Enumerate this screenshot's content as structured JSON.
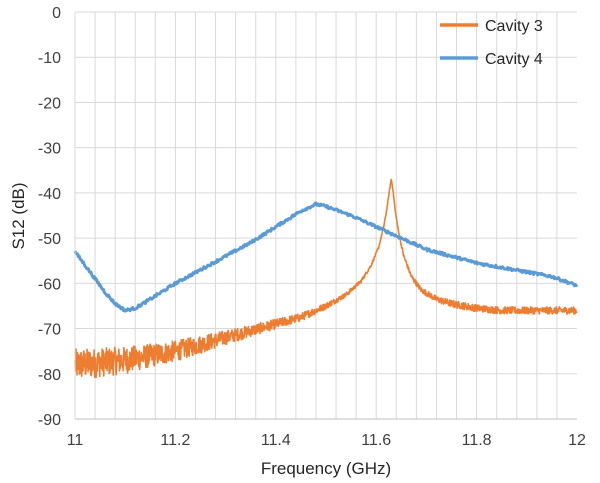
{
  "chart_data": {
    "type": "line",
    "title": "",
    "xlabel": "Frequency (GHz)",
    "ylabel": "S12 (dB)",
    "xlim": [
      11,
      12
    ],
    "ylim": [
      -90,
      0
    ],
    "x_ticks": [
      11,
      11.2,
      11.4,
      11.6,
      11.8,
      12
    ],
    "x_tick_labels": [
      "11",
      "11.2",
      "11.4",
      "11.6",
      "11.8",
      "12"
    ],
    "y_ticks": [
      0,
      -10,
      -20,
      -30,
      -40,
      -50,
      -60,
      -70,
      -80,
      -90
    ],
    "y_tick_labels": [
      "0",
      "-10",
      "-20",
      "-30",
      "-40",
      "-50",
      "-60",
      "-70",
      "-80",
      "-90"
    ],
    "x_minor_step": 0.04,
    "grid": true,
    "legend_position": "top-right",
    "series": [
      {
        "name": "Cavity 3",
        "color": "#ED7D31",
        "noisy": true,
        "x": [
          11.0,
          11.05,
          11.1,
          11.15,
          11.2,
          11.25,
          11.3,
          11.35,
          11.4,
          11.45,
          11.5,
          11.54,
          11.57,
          11.59,
          11.605,
          11.615,
          11.622,
          11.627,
          11.63,
          11.633,
          11.638,
          11.645,
          11.655,
          11.67,
          11.69,
          11.72,
          11.75,
          11.8,
          11.85,
          11.9,
          11.95,
          12.0
        ],
        "y": [
          -78,
          -77.5,
          -77,
          -76,
          -75,
          -73.5,
          -72,
          -70.5,
          -69,
          -67.5,
          -65,
          -62.5,
          -59.5,
          -56,
          -52,
          -47.5,
          -43,
          -39,
          -37,
          -39,
          -44,
          -49,
          -54,
          -58.5,
          -61.5,
          -63.5,
          -64.5,
          -65.5,
          -66,
          -66,
          -66,
          -66
        ],
        "noise": [
          3.5,
          3.2,
          3.0,
          2.6,
          2.3,
          2.0,
          1.6,
          1.3,
          1.1,
          0.9,
          0.7,
          0.5,
          0.4,
          0.3,
          0.25,
          0.2,
          0.2,
          0.2,
          0.2,
          0.2,
          0.25,
          0.3,
          0.4,
          0.5,
          0.6,
          0.7,
          0.8,
          0.8,
          0.8,
          0.8,
          0.8,
          0.8
        ]
      },
      {
        "name": "Cavity 4",
        "color": "#5B9BD5",
        "noisy": false,
        "x": [
          11.0,
          11.02,
          11.04,
          11.06,
          11.08,
          11.1,
          11.12,
          11.15,
          11.2,
          11.25,
          11.3,
          11.35,
          11.4,
          11.45,
          11.48,
          11.5,
          11.55,
          11.6,
          11.65,
          11.7,
          11.75,
          11.8,
          11.85,
          11.9,
          11.95,
          12.0
        ],
        "y": [
          -53,
          -56,
          -59,
          -62,
          -64.5,
          -66,
          -65.5,
          -63.5,
          -60,
          -57,
          -54,
          -51,
          -47.5,
          -44,
          -42.5,
          -43,
          -45,
          -47.5,
          -50,
          -52.5,
          -54,
          -55.5,
          -56.5,
          -57.5,
          -58.5,
          -60.5
        ],
        "noise": [
          0.3
        ]
      }
    ]
  }
}
